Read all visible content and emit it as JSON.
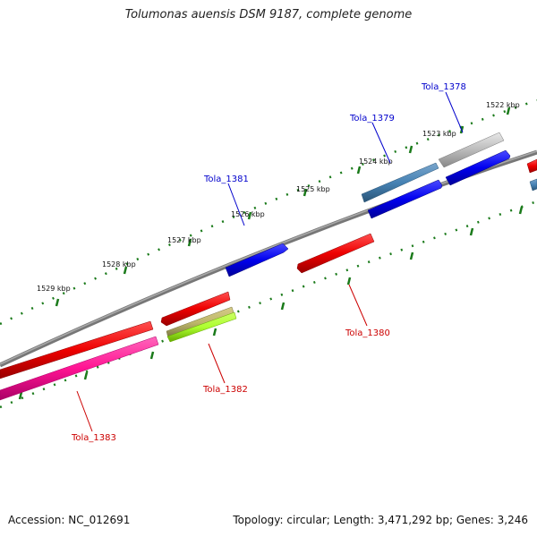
{
  "title": "Tolumonas auensis DSM 9187, complete genome",
  "accession": "Accession: NC_012691",
  "topology": "Topology: circular; Length: 3,471,292 bp; Genes: 3,246",
  "ticks": [
    {
      "label": "1522 kbp"
    },
    {
      "label": "1523 kbp"
    },
    {
      "label": "1524 kbp"
    },
    {
      "label": "1525 kbp"
    },
    {
      "label": "1526 kbp"
    },
    {
      "label": "1527 kbp"
    },
    {
      "label": "1528 kbp"
    },
    {
      "label": "1529 kbp"
    }
  ],
  "genes": [
    {
      "name": "Tola_1378",
      "color": "#0000cc"
    },
    {
      "name": "Tola_1379",
      "color": "#0000cc"
    },
    {
      "name": "Tola_1380",
      "color": "#cc0000"
    },
    {
      "name": "Tola_1381",
      "color": "#0000cc"
    },
    {
      "name": "Tola_1382",
      "color": "#cc0000"
    },
    {
      "name": "Tola_1383",
      "color": "#cc0000"
    }
  ]
}
